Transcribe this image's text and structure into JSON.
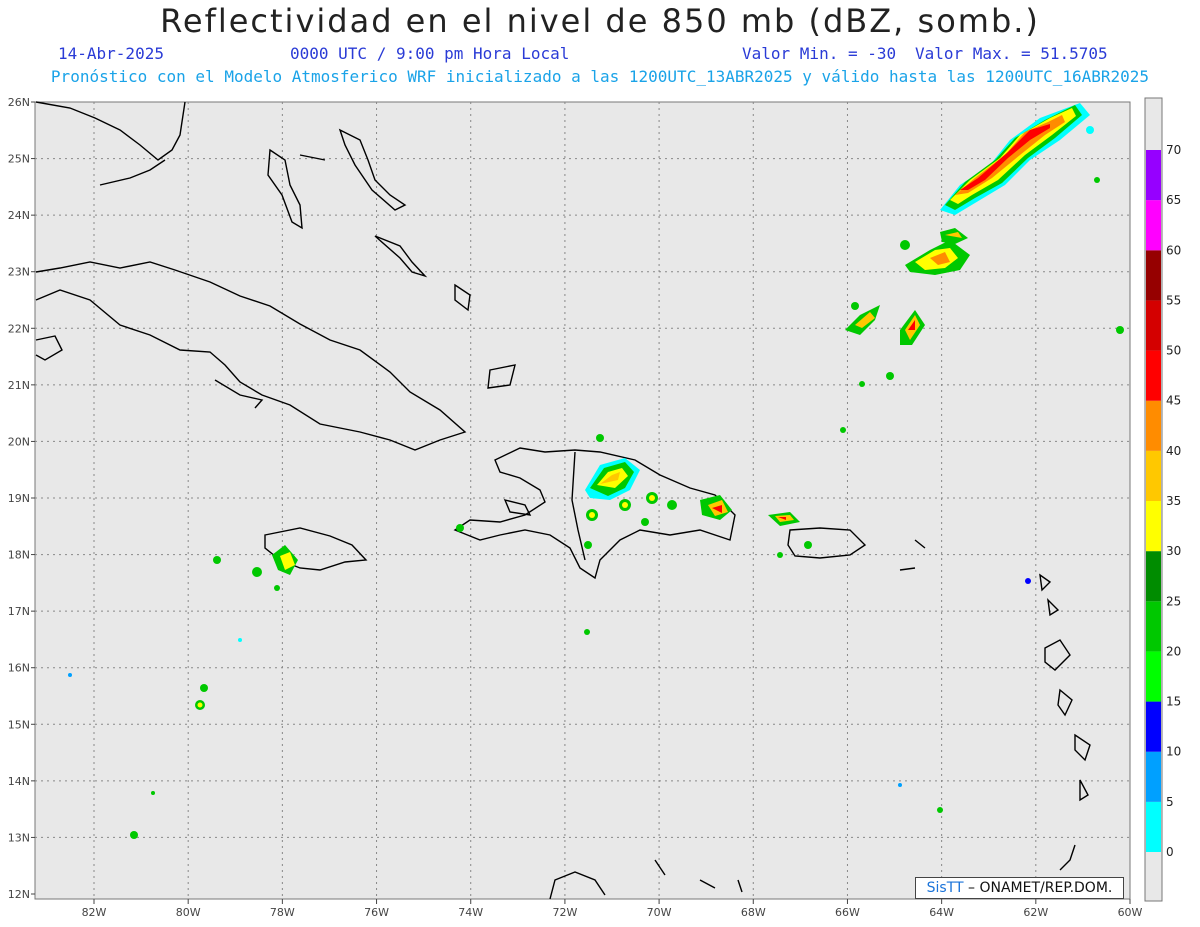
{
  "title": "Reflectividad en el nivel de 850 mb (dBZ, somb.)",
  "date": "14-Abr-2025",
  "time": "0000 UTC / 9:00 pm Hora Local",
  "min_label": "Valor Min. = -30",
  "max_label": "Valor Max. = 51.5705",
  "description": "Pronóstico con el Modelo Atmosferico WRF inicializado a las 1200UTC_13ABR2025 y válido hasta las  1200UTC_16ABR2025",
  "credit": {
    "brand": "SisTT",
    "text": "– ONAMET/REP.DOM."
  },
  "lat_labels": [
    "26N",
    "25N",
    "24N",
    "23N",
    "22N",
    "21N",
    "20N",
    "19N",
    "18N",
    "17N",
    "16N",
    "15N",
    "14N",
    "13N",
    "12N"
  ],
  "lon_labels": [
    "82W",
    "80W",
    "78W",
    "76W",
    "74W",
    "72W",
    "70W",
    "68W",
    "66W",
    "64W",
    "62W",
    "60W"
  ],
  "colorbar": {
    "ticks": [
      "0",
      "5",
      "10",
      "15",
      "20",
      "25",
      "30",
      "35",
      "40",
      "45",
      "50",
      "55",
      "60",
      "65",
      "70"
    ],
    "colors": [
      "#00ffff",
      "#00a0ff",
      "#0000ff",
      "#00ff00",
      "#00c800",
      "#008c00",
      "#ffff00",
      "#ffc800",
      "#ff8c00",
      "#ff0000",
      "#d40000",
      "#960000",
      "#ff00ff",
      "#9600ff"
    ]
  }
}
